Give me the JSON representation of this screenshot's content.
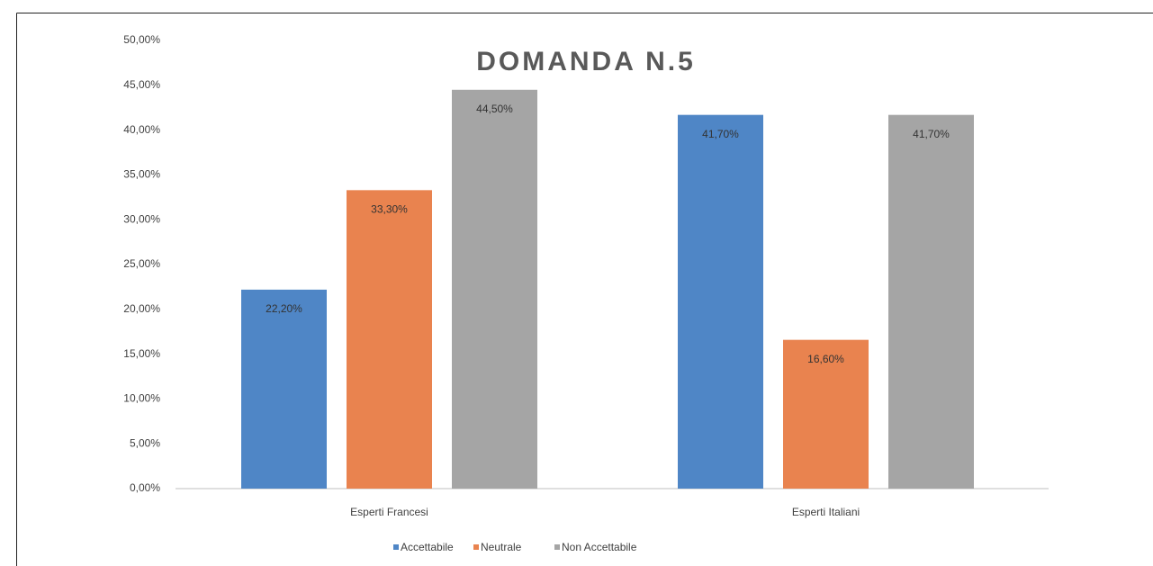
{
  "chart_data": {
    "type": "bar",
    "title": "DOMANDA N.5",
    "categories": [
      "Esperti Francesi",
      "Esperti Italiani"
    ],
    "series": [
      {
        "name": "Accettabile",
        "color": "#4f86c6",
        "values": [
          22.2,
          41.7
        ],
        "value_labels": [
          "22,20%",
          "41,70%"
        ]
      },
      {
        "name": "Neutrale",
        "color": "#e9834f",
        "values": [
          33.3,
          16.6
        ],
        "value_labels": [
          "33,30%",
          "16,60%"
        ]
      },
      {
        "name": "Non Accettabile",
        "color": "#a5a5a5",
        "values": [
          44.5,
          41.7
        ],
        "value_labels": [
          "44,50%",
          "41,70%"
        ]
      }
    ],
    "ylim": [
      0,
      50
    ],
    "yticks": [
      {
        "value": 0,
        "label": "0,00%"
      },
      {
        "value": 5,
        "label": "5,00%"
      },
      {
        "value": 10,
        "label": "10,00%"
      },
      {
        "value": 15,
        "label": "15,00%"
      },
      {
        "value": 20,
        "label": "20,00%"
      },
      {
        "value": 25,
        "label": "25,00%"
      },
      {
        "value": 30,
        "label": "30,00%"
      },
      {
        "value": 35,
        "label": "35,00%"
      },
      {
        "value": 40,
        "label": "40,00%"
      },
      {
        "value": 45,
        "label": "45,00%"
      },
      {
        "value": 50,
        "label": "50,00%"
      }
    ],
    "grid": false,
    "legend": "bottom"
  }
}
